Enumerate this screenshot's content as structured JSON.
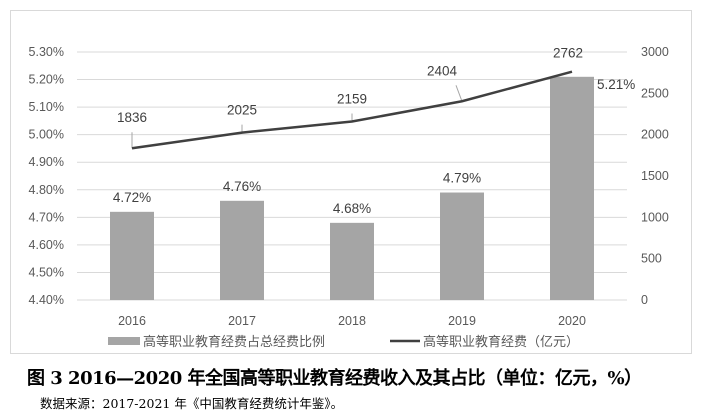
{
  "chart_data": {
    "type": "bar+line",
    "categories": [
      "2016",
      "2017",
      "2018",
      "2019",
      "2020"
    ],
    "series": [
      {
        "name": "高等职业教育经费占总经费比例",
        "type": "bar",
        "axis": "left",
        "values": [
          4.72,
          4.76,
          4.68,
          4.79,
          5.21
        ],
        "labels": [
          "4.72%",
          "4.76%",
          "4.68%",
          "4.79%",
          "5.21%"
        ],
        "color": "#a5a5a5"
      },
      {
        "name": "高等职业教育经费（亿元）",
        "type": "line",
        "axis": "right",
        "values": [
          1836,
          2025,
          2159,
          2404,
          2762
        ],
        "labels": [
          "1836",
          "2025",
          "2159",
          "2404",
          "2762"
        ],
        "color": "#404040"
      }
    ],
    "left_axis": {
      "ylim": [
        4.4,
        5.3
      ],
      "ticks": [
        "4.40%",
        "4.50%",
        "4.60%",
        "4.70%",
        "4.80%",
        "4.90%",
        "5.00%",
        "5.10%",
        "5.20%",
        "5.30%"
      ]
    },
    "right_axis": {
      "ylim": [
        0,
        3000
      ],
      "ticks": [
        "0",
        "500",
        "1000",
        "1500",
        "2000",
        "2500",
        "3000"
      ]
    },
    "grid": true,
    "legend": "bottom"
  },
  "caption": "图 3 2016—2020 年全国高等职业教育经费收入及其占比（单位：亿元，%）",
  "source": "数据来源：2017-2021 年《中国教育经费统计年鉴》。"
}
